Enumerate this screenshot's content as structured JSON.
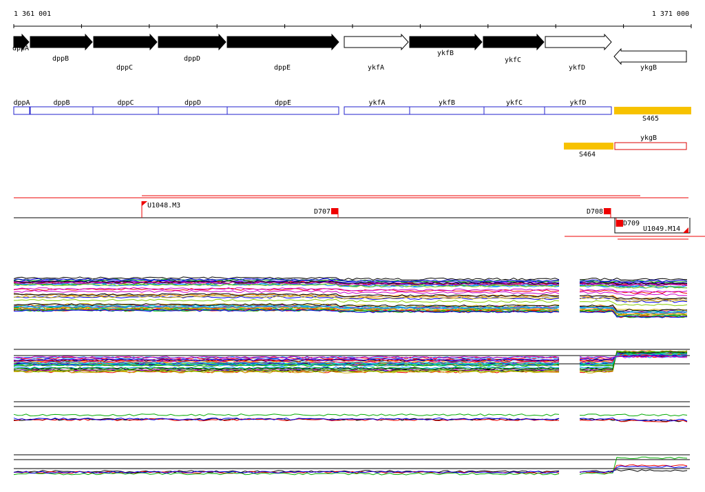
{
  "ruler": {
    "start": "1 361 001",
    "end": "1 371 000"
  },
  "genes": [
    {
      "label": "dppA",
      "filled": true,
      "strand": "+"
    },
    {
      "label": "dppB",
      "filled": true,
      "strand": "+"
    },
    {
      "label": "dppC",
      "filled": true,
      "strand": "+"
    },
    {
      "label": "dppD",
      "filled": true,
      "strand": "+"
    },
    {
      "label": "dppE",
      "filled": true,
      "strand": "+"
    },
    {
      "label": "ykfA",
      "filled": false,
      "strand": "+"
    },
    {
      "label": "ykfB",
      "filled": true,
      "strand": "+"
    },
    {
      "label": "ykfC",
      "filled": true,
      "strand": "+"
    },
    {
      "label": "ykfD",
      "filled": false,
      "strand": "+"
    },
    {
      "label": "ykgB",
      "filled": false,
      "strand": "-"
    }
  ],
  "operon_boxes": [
    "dppA",
    "dppB",
    "dppC",
    "dppD",
    "dppE",
    "ykfA",
    "ykfB",
    "ykfC",
    "ykfD"
  ],
  "segments": [
    {
      "label": "S465"
    },
    {
      "label": "ykgB"
    },
    {
      "label": "S464"
    }
  ],
  "markers": [
    {
      "label": "U1048.M3"
    },
    {
      "label": "D707"
    },
    {
      "label": "D708"
    },
    {
      "label": "D709"
    },
    {
      "label": "U1049.M14"
    }
  ]
}
